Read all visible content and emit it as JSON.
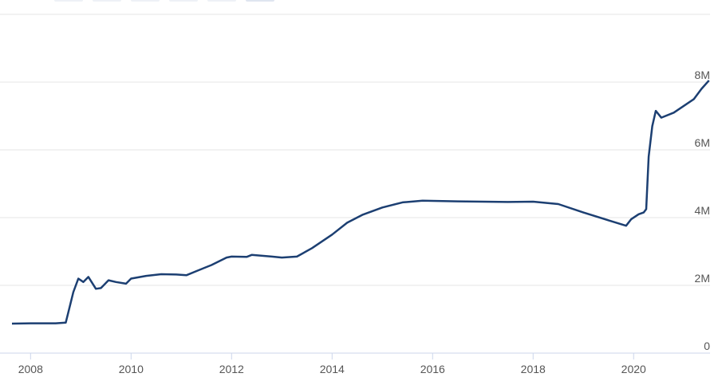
{
  "chart_data": {
    "type": "line",
    "x": [
      2007.63,
      2008.0,
      2008.5,
      2008.7,
      2008.75,
      2008.85,
      2008.95,
      2009.05,
      2009.15,
      2009.3,
      2009.4,
      2009.55,
      2009.7,
      2009.9,
      2010.0,
      2010.3,
      2010.6,
      2010.9,
      2011.1,
      2011.3,
      2011.6,
      2011.9,
      2012.0,
      2012.3,
      2012.4,
      2012.8,
      2013.0,
      2013.3,
      2013.6,
      2014.0,
      2014.3,
      2014.6,
      2015.0,
      2015.4,
      2015.8,
      2016.5,
      2017.0,
      2017.5,
      2018.0,
      2018.5,
      2019.0,
      2019.5,
      2019.85,
      2019.95,
      2020.1,
      2020.2,
      2020.25,
      2020.3,
      2020.37,
      2020.44,
      2020.55,
      2020.8,
      2021.0,
      2021.2,
      2021.35,
      2021.5
    ],
    "series": [
      {
        "color": "#1c3f72",
        "values": [
          870000,
          880000,
          880000,
          900000,
          1200000,
          1800000,
          2200000,
          2100000,
          2250000,
          1900000,
          1920000,
          2150000,
          2100000,
          2050000,
          2200000,
          2280000,
          2330000,
          2320000,
          2300000,
          2420000,
          2600000,
          2820000,
          2850000,
          2840000,
          2900000,
          2850000,
          2820000,
          2850000,
          3100000,
          3500000,
          3850000,
          4080000,
          4300000,
          4450000,
          4500000,
          4480000,
          4470000,
          4460000,
          4470000,
          4400000,
          4150000,
          3920000,
          3760000,
          3950000,
          4100000,
          4150000,
          4250000,
          5800000,
          6700000,
          7150000,
          6950000,
          7100000,
          7300000,
          7500000,
          7800000,
          8050000
        ]
      }
    ],
    "xlim": [
      2007.63,
      2021.52
    ],
    "xticks": [
      2008,
      2010,
      2012,
      2014,
      2016,
      2018,
      2020
    ],
    "ylim": [
      0,
      10000000
    ],
    "yticks": [
      0,
      {
        "value": 2000000,
        "label": "2M"
      },
      {
        "value": 4000000,
        "label": "4M"
      },
      {
        "value": 6000000,
        "label": "6M"
      },
      {
        "value": 8000000,
        "label": "8M"
      }
    ],
    "grid": true
  }
}
